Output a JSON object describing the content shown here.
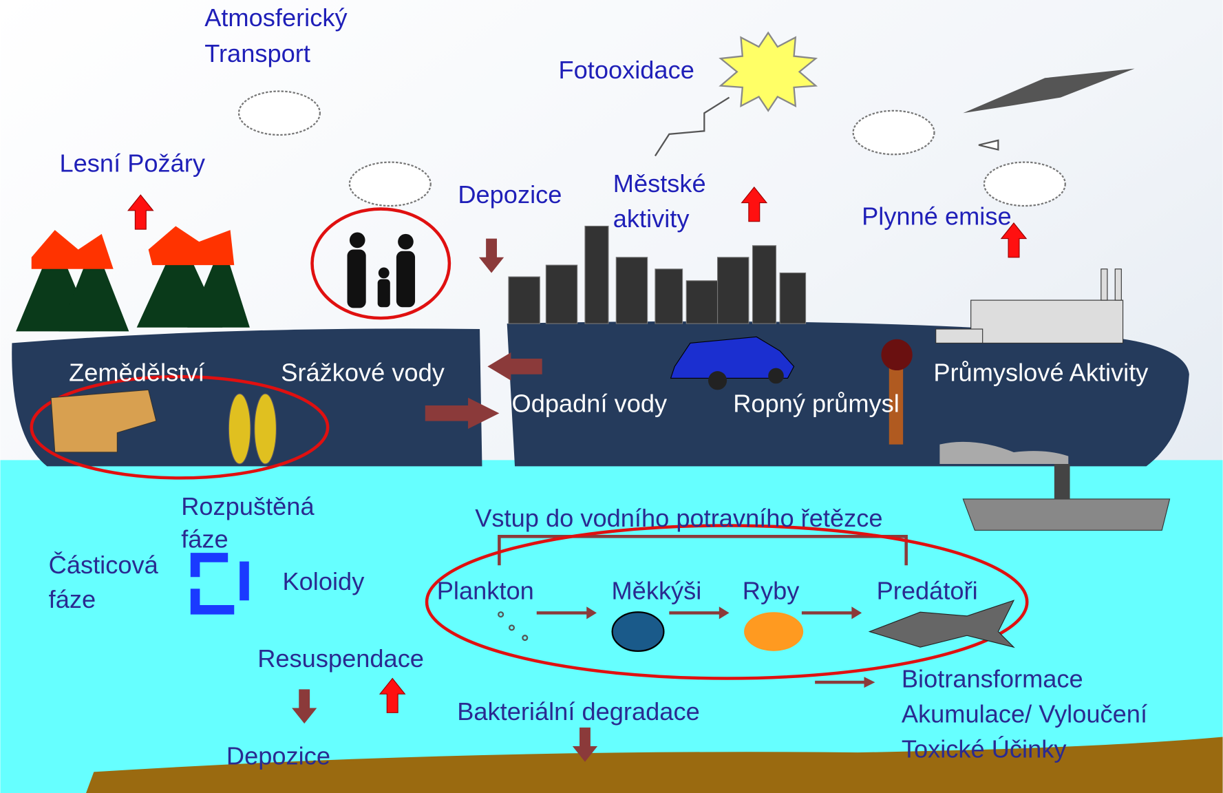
{
  "atmosphere": {
    "transport": [
      "Atmosferický",
      "Transport"
    ],
    "photooxidation": "Fotooxidace",
    "forest_fires": "Lesní Požáry",
    "deposition": "Depozice",
    "urban": [
      "Městské",
      "aktivity"
    ],
    "gas_emissions": "Plynné emise"
  },
  "land": {
    "agriculture": "Zemědělství",
    "stormwater": "Srážkové vody",
    "wastewater": "Odpadní vody",
    "oil": "Ropný průmysl",
    "industry": "Průmyslové Aktivity"
  },
  "water": {
    "dissolved": [
      "Rozpuštěná",
      "fáze"
    ],
    "particulate": [
      "Částicová",
      "fáze"
    ],
    "colloids": "Koloidy",
    "resuspension": "Resuspendace",
    "deposition": "Depozice",
    "bacterial": "Bakteriální degradace",
    "food_chain": {
      "title": "Vstup do vodního potravního řetězce",
      "nodes": [
        "Plankton",
        "Měkkýši",
        "Ryby",
        "Predátoři"
      ]
    },
    "effects": [
      "Biotransformace",
      "Akumulace/ Vyloučení",
      "Toxické Účinky"
    ]
  }
}
